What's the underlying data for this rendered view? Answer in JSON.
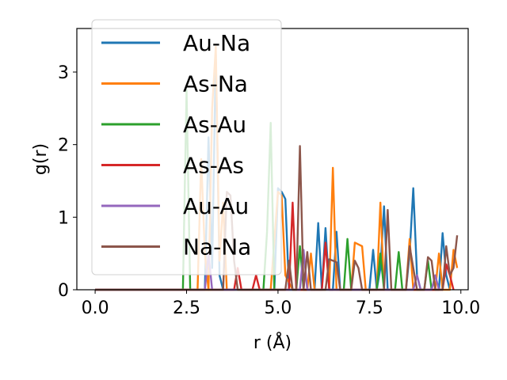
{
  "chart_data": {
    "type": "line",
    "xlabel": "r (Å)",
    "ylabel": "g(r)",
    "xlim": [
      -0.5,
      10.2
    ],
    "ylim": [
      0,
      3.6
    ],
    "xticks": [
      "0.0",
      "2.5",
      "5.0",
      "7.5",
      "10.0"
    ],
    "xtick_values": [
      0,
      2.5,
      5,
      7.5,
      10
    ],
    "yticks": [
      "0",
      "1",
      "2",
      "3"
    ],
    "ytick_values": [
      0,
      1,
      2,
      3
    ],
    "grid": false,
    "legend_position": "top-left",
    "series": [
      {
        "name": "Au-Na",
        "color": "#1f77b4",
        "points": [
          [
            0,
            0
          ],
          [
            3.0,
            0
          ],
          [
            3.1,
            2.1
          ],
          [
            3.2,
            0.3
          ],
          [
            3.3,
            3.25
          ],
          [
            3.4,
            0.2
          ],
          [
            3.5,
            0
          ],
          [
            4.9,
            0
          ],
          [
            5.0,
            1.4
          ],
          [
            5.1,
            1.35
          ],
          [
            5.2,
            1.25
          ],
          [
            5.3,
            0
          ],
          [
            6.0,
            0
          ],
          [
            6.1,
            0.92
          ],
          [
            6.2,
            0
          ],
          [
            6.3,
            0.85
          ],
          [
            6.4,
            0
          ],
          [
            6.5,
            0
          ],
          [
            6.6,
            0.8
          ],
          [
            6.7,
            0
          ],
          [
            7.5,
            0
          ],
          [
            7.6,
            0.55
          ],
          [
            7.7,
            0
          ],
          [
            7.8,
            0.3
          ],
          [
            7.9,
            1.15
          ],
          [
            8.0,
            0
          ],
          [
            8.5,
            0
          ],
          [
            8.6,
            0.5
          ],
          [
            8.7,
            1.4
          ],
          [
            8.8,
            0.2
          ],
          [
            8.9,
            0
          ],
          [
            9.4,
            0
          ],
          [
            9.5,
            0.78
          ],
          [
            9.6,
            0.2
          ],
          [
            9.7,
            0
          ]
        ]
      },
      {
        "name": "As-Na",
        "color": "#ff7f0e",
        "points": [
          [
            0,
            0
          ],
          [
            2.8,
            0
          ],
          [
            2.9,
            1.8
          ],
          [
            3.0,
            0.5
          ],
          [
            3.1,
            0
          ],
          [
            3.2,
            2.5
          ],
          [
            3.3,
            3.35
          ],
          [
            3.4,
            0.4
          ],
          [
            3.5,
            1.2
          ],
          [
            3.6,
            0
          ],
          [
            4.8,
            0
          ],
          [
            5.0,
            1.35
          ],
          [
            5.1,
            1.3
          ],
          [
            5.2,
            0.2
          ],
          [
            5.4,
            0
          ],
          [
            5.8,
            0
          ],
          [
            5.9,
            0.5
          ],
          [
            6.0,
            0
          ],
          [
            6.4,
            0
          ],
          [
            6.5,
            1.68
          ],
          [
            6.6,
            0
          ],
          [
            7.0,
            0
          ],
          [
            7.1,
            0.65
          ],
          [
            7.3,
            0.6
          ],
          [
            7.4,
            0
          ],
          [
            7.7,
            0
          ],
          [
            7.8,
            1.2
          ],
          [
            7.9,
            0
          ],
          [
            8.5,
            0
          ],
          [
            8.6,
            0.7
          ],
          [
            8.7,
            0
          ],
          [
            9.3,
            0
          ],
          [
            9.4,
            0.5
          ],
          [
            9.5,
            0
          ],
          [
            9.7,
            0
          ],
          [
            9.8,
            0.55
          ],
          [
            9.9,
            0.3
          ]
        ]
      },
      {
        "name": "As-Au",
        "color": "#2ca02c",
        "points": [
          [
            0,
            0
          ],
          [
            2.4,
            0
          ],
          [
            2.5,
            2.75
          ],
          [
            2.6,
            0
          ],
          [
            4.6,
            0
          ],
          [
            4.7,
            0.8
          ],
          [
            4.8,
            2.3
          ],
          [
            4.9,
            0
          ],
          [
            5.5,
            0
          ],
          [
            5.6,
            0.6
          ],
          [
            5.7,
            0
          ],
          [
            6.8,
            0
          ],
          [
            6.9,
            0.7
          ],
          [
            7.0,
            0
          ],
          [
            7.7,
            0
          ],
          [
            7.8,
            0.5
          ],
          [
            7.9,
            0
          ],
          [
            8.2,
            0
          ],
          [
            8.3,
            0.52
          ],
          [
            8.4,
            0
          ],
          [
            9.0,
            0
          ],
          [
            9.1,
            0.4
          ],
          [
            9.2,
            0
          ]
        ]
      },
      {
        "name": "As-As",
        "color": "#d62728",
        "points": [
          [
            0,
            0
          ],
          [
            3.8,
            0
          ],
          [
            3.9,
            0.3
          ],
          [
            4.0,
            0
          ],
          [
            4.3,
            0
          ],
          [
            4.4,
            0.2
          ],
          [
            4.5,
            0
          ],
          [
            5.3,
            0
          ],
          [
            5.4,
            1.2
          ],
          [
            5.5,
            0
          ],
          [
            6.2,
            0
          ],
          [
            6.3,
            0.65
          ],
          [
            6.4,
            0
          ],
          [
            9.5,
            0
          ],
          [
            9.6,
            0.35
          ],
          [
            9.7,
            0.2
          ],
          [
            9.8,
            0
          ]
        ]
      },
      {
        "name": "Au-Au",
        "color": "#9467bd",
        "points": [
          [
            0,
            0
          ],
          [
            3.0,
            0
          ],
          [
            3.1,
            0.5
          ],
          [
            3.2,
            0
          ],
          [
            5.6,
            0
          ],
          [
            5.7,
            0.55
          ],
          [
            5.8,
            0
          ],
          [
            8.7,
            0
          ],
          [
            8.8,
            0.2
          ],
          [
            8.9,
            0
          ],
          [
            9.2,
            0
          ],
          [
            9.3,
            0.2
          ],
          [
            9.4,
            0
          ]
        ]
      },
      {
        "name": "Na-Na",
        "color": "#8c564b",
        "points": [
          [
            0,
            0
          ],
          [
            3.5,
            0
          ],
          [
            3.6,
            1.35
          ],
          [
            3.7,
            1.3
          ],
          [
            3.8,
            0.4
          ],
          [
            3.9,
            0
          ],
          [
            5.2,
            0
          ],
          [
            5.3,
            0.4
          ],
          [
            5.4,
            0
          ],
          [
            5.5,
            0
          ],
          [
            5.6,
            1.98
          ],
          [
            5.7,
            0
          ],
          [
            5.8,
            0.52
          ],
          [
            5.9,
            0
          ],
          [
            6.3,
            0
          ],
          [
            6.4,
            0.42
          ],
          [
            6.5,
            0.4
          ],
          [
            6.6,
            0.38
          ],
          [
            6.7,
            0
          ],
          [
            7.0,
            0
          ],
          [
            7.1,
            0.4
          ],
          [
            7.2,
            0.3
          ],
          [
            7.3,
            0
          ],
          [
            7.9,
            0
          ],
          [
            8.0,
            1.1
          ],
          [
            8.1,
            0
          ],
          [
            8.5,
            0
          ],
          [
            8.6,
            0.6
          ],
          [
            8.7,
            0.3
          ],
          [
            8.8,
            0
          ],
          [
            9.0,
            0
          ],
          [
            9.1,
            0.45
          ],
          [
            9.2,
            0.4
          ],
          [
            9.3,
            0
          ],
          [
            9.5,
            0
          ],
          [
            9.6,
            0.6
          ],
          [
            9.7,
            0.2
          ],
          [
            9.8,
            0.3
          ],
          [
            9.9,
            0.75
          ]
        ]
      }
    ]
  }
}
